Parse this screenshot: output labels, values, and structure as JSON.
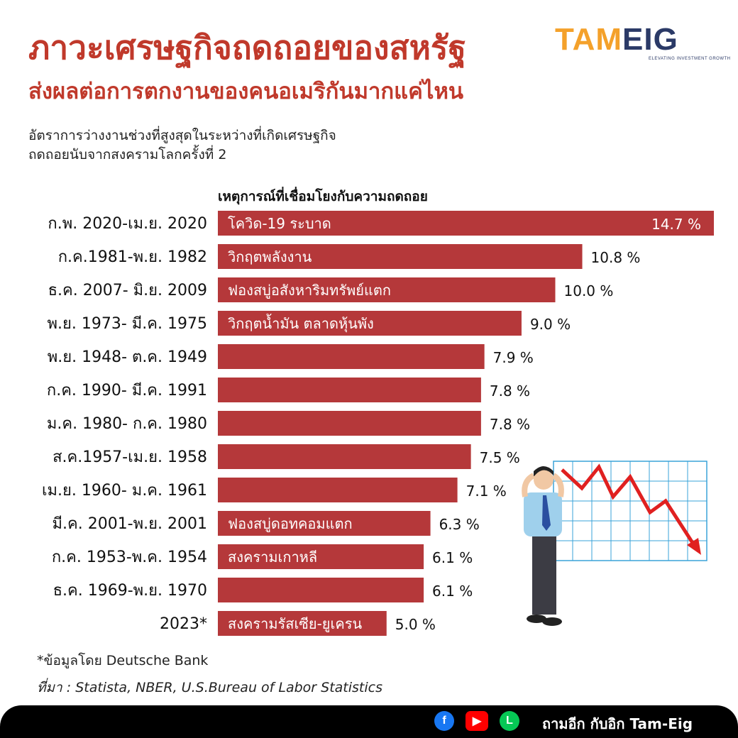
{
  "header": {
    "title_line1": "ภาวะเศรษฐกิจถดถอยของสหรัฐ",
    "title_line2": "ส่งผลต่อการตกงานของคนอเมริกันมากแค่ไหน",
    "subtitle_line1": "อัตราการว่างงานช่วงที่สูงสุดในระหว่างที่เกิดเศรษฐกิจ",
    "subtitle_line2": "ถดถอยนับจากสงครามโลกครั้งที่ 2"
  },
  "logo": {
    "text_part1": "TAM",
    "text_part2": "EIG",
    "tagline": "ELEVATING INVESTMENT GROWTH"
  },
  "column_header": "เหตุการณ์ที่เชื่อมโยงกับความถดถอย",
  "colors": {
    "title": "#c0392b",
    "bar": "#b5383a",
    "footer_bg": "#000000"
  },
  "chart_data": {
    "type": "bar",
    "orientation": "horizontal",
    "categories": [
      "ก.พ. 2020-เม.ย. 2020",
      "ก.ค.1981-พ.ย. 1982",
      "ธ.ค. 2007- มิ.ย. 2009",
      "พ.ย. 1973- มี.ค. 1975",
      "พ.ย. 1948- ต.ค. 1949",
      "ก.ค. 1990- มี.ค. 1991",
      "ม.ค. 1980- ก.ค. 1980",
      "ส.ค.1957-เม.ย. 1958",
      "เม.ย. 1960- ม.ค. 1961",
      "มี.ค. 2001-พ.ย. 2001",
      "ก.ค. 1953-พ.ค. 1954",
      "ธ.ค. 1969-พ.ย. 1970",
      "2023*"
    ],
    "values": [
      14.7,
      10.8,
      10.0,
      9.0,
      7.9,
      7.8,
      7.8,
      7.5,
      7.1,
      6.3,
      6.1,
      6.1,
      5.0
    ],
    "value_labels": [
      "14.7 %",
      "10.8 %",
      "10.0 %",
      "9.0 %",
      "7.9 %",
      "7.8 %",
      "7.8 %",
      "7.5 %",
      "7.1 %",
      "6.3 %",
      "6.1 %",
      "6.1 %",
      "5.0 %"
    ],
    "events": [
      "โควิด-19 ระบาด",
      "วิกฤตพลังงาน",
      "ฟองสบู่อสังหาริมทรัพย์แตก",
      "วิกฤตน้ำมัน ตลาดหุ้นพัง",
      "",
      "",
      "",
      "",
      "",
      "ฟองสบู่ดอทคอมแตก",
      "สงครามเกาหลี",
      "",
      "สงครามรัสเซีย-ยูเครน"
    ],
    "unit": "%",
    "xlim": [
      0,
      14.7
    ]
  },
  "footnote": "*ข้อมูลโดย Deutsche Bank",
  "source": "ที่มา : Statista, NBER, U.S.Bureau of Labor Statistics",
  "footer": {
    "brand_text": "ถามอีก กับอิก Tam-Eig",
    "icons": [
      "facebook-icon",
      "youtube-icon",
      "line-icon"
    ]
  }
}
